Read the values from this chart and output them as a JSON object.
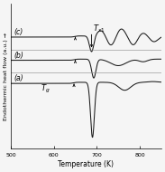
{
  "xlabel": "Temperature (K)",
  "ylabel": "Endothermic heat flow (a.u.) →",
  "xlim": [
    500,
    850
  ],
  "ylim": [
    -4.5,
    5.5
  ],
  "background_color": "#f5f5f5",
  "curve_color": "#1a1a1a",
  "label_a": "(a)",
  "label_b": "(b)",
  "label_c": "(c)",
  "offsets": [
    0.0,
    1.6,
    3.2
  ],
  "font_size": 5.5
}
